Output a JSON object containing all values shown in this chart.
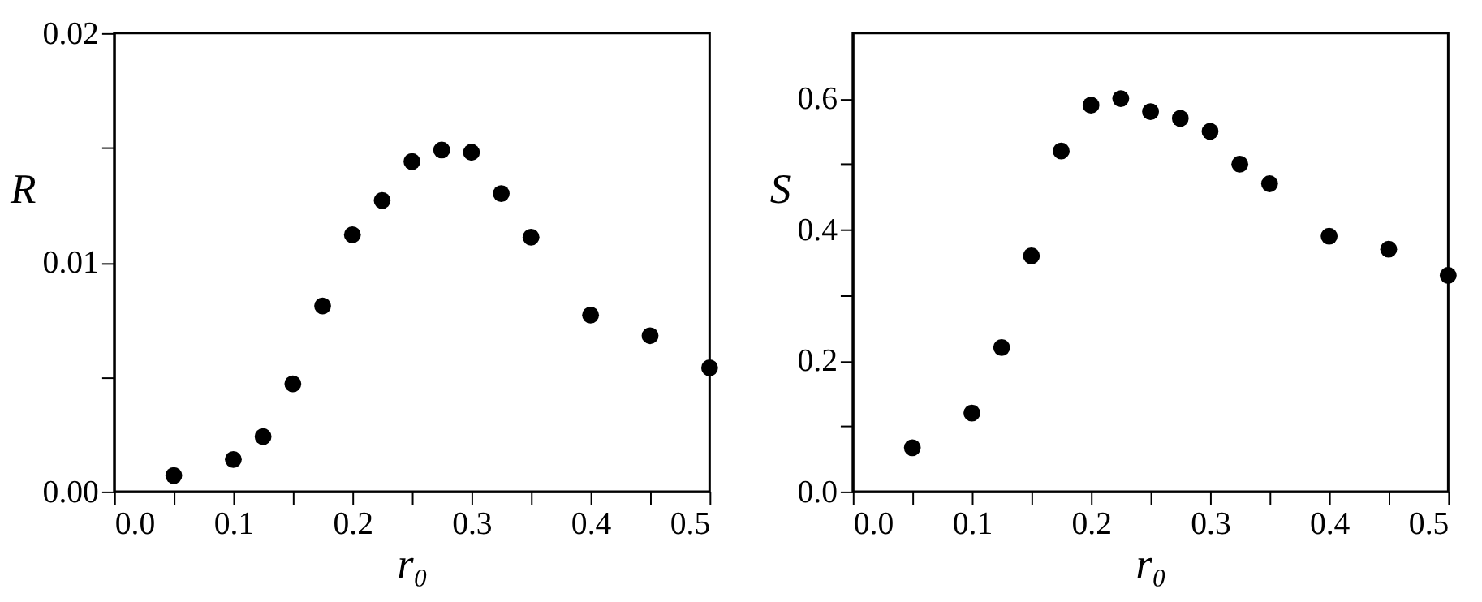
{
  "chart_data": [
    {
      "type": "scatter",
      "xlabel": "r₀",
      "ylabel": "R",
      "marker": "circle",
      "grid": false,
      "x": [
        0.05,
        0.1,
        0.125,
        0.15,
        0.175,
        0.2,
        0.225,
        0.25,
        0.275,
        0.3,
        0.325,
        0.35,
        0.4,
        0.45,
        0.5
      ],
      "series": [
        {
          "color": "#000000",
          "values": [
            0.0007,
            0.0014,
            0.0024,
            0.0047,
            0.0081,
            0.0112,
            0.0127,
            0.0144,
            0.0149,
            0.0148,
            0.013,
            0.0111,
            0.0077,
            0.0068,
            0.0054
          ]
        }
      ],
      "xlim": [
        0,
        0.5
      ],
      "xticks": [
        {
          "value": 0,
          "label": "0.0"
        },
        {
          "value": 0.05,
          "label": null
        },
        0.1,
        {
          "value": 0.15,
          "label": null
        },
        0.2,
        {
          "value": 0.25,
          "label": null
        },
        0.3,
        {
          "value": 0.35,
          "label": null
        },
        0.4,
        {
          "value": 0.45,
          "label": null
        },
        0.5
      ],
      "ylim": [
        0,
        0.02
      ],
      "yticks": [
        {
          "value": 0,
          "label": "0.00"
        },
        {
          "value": 0.005,
          "label": null
        },
        0.01,
        {
          "value": 0.015,
          "label": null
        },
        0.02
      ]
    },
    {
      "type": "scatter",
      "xlabel": "r₀",
      "ylabel": "S",
      "marker": "circle",
      "grid": false,
      "x": [
        0.05,
        0.1,
        0.125,
        0.15,
        0.175,
        0.2,
        0.225,
        0.25,
        0.275,
        0.3,
        0.325,
        0.35,
        0.4,
        0.45,
        0.5
      ],
      "series": [
        {
          "color": "#000000",
          "values": [
            0.067,
            0.12,
            0.22,
            0.36,
            0.52,
            0.59,
            0.6,
            0.58,
            0.57,
            0.55,
            0.5,
            0.47,
            0.39,
            0.37,
            0.33
          ]
        }
      ],
      "xlim": [
        0,
        0.5
      ],
      "xticks": [
        {
          "value": 0,
          "label": "0.0"
        },
        {
          "value": 0.05,
          "label": null
        },
        0.1,
        {
          "value": 0.15,
          "label": null
        },
        0.2,
        {
          "value": 0.25,
          "label": null
        },
        0.3,
        {
          "value": 0.35,
          "label": null
        },
        0.4,
        {
          "value": 0.45,
          "label": null
        },
        0.5
      ],
      "ylim": [
        0,
        0.7
      ],
      "yticks": [
        {
          "value": 0,
          "label": "0.0"
        },
        {
          "value": 0.1,
          "label": null
        },
        0.2,
        {
          "value": 0.3,
          "label": null
        },
        0.4,
        {
          "value": 0.5,
          "label": null
        },
        0.6
      ]
    }
  ]
}
